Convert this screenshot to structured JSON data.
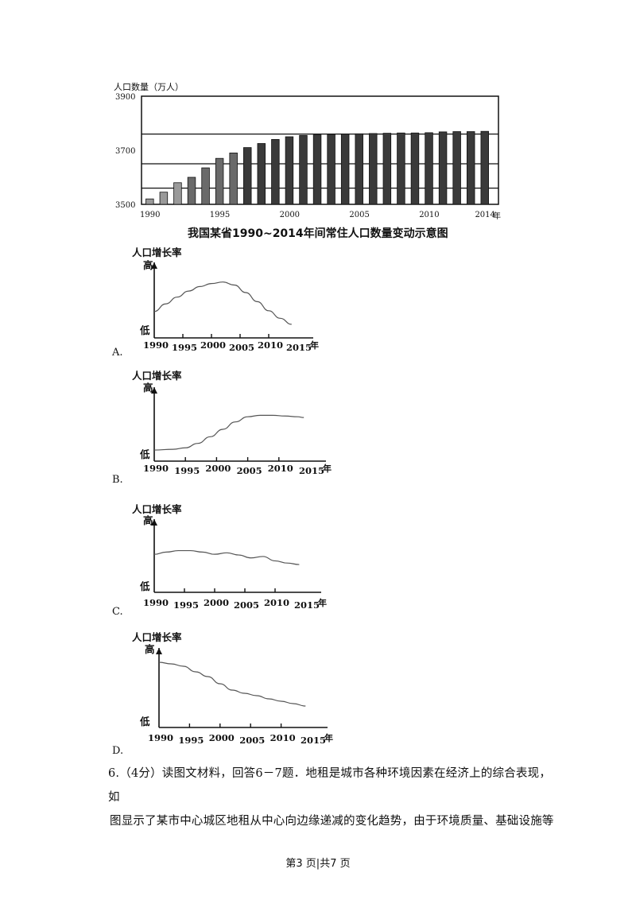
{
  "top_chart": {
    "y_axis_title": "人口数量（万人）",
    "title": "我国某省1990~2014年间常住人口数量变动示意图",
    "x_unit": "年"
  },
  "options": [
    {
      "label": "A.",
      "y_title": "人口增长率",
      "high": "高",
      "low": "低",
      "x_unit": "年"
    },
    {
      "label": "B.",
      "y_title": "人口增长率",
      "high": "高",
      "low": "低",
      "x_unit": "年"
    },
    {
      "label": "C.",
      "y_title": "人口增长率",
      "high": "高",
      "low": "低",
      "x_unit": "年"
    },
    {
      "label": "D.",
      "y_title": "人口增长率",
      "high": "高",
      "low": "低",
      "x_unit": "年"
    }
  ],
  "question": {
    "number": "6.",
    "points": "（4分）",
    "line1": "读图文材料，回答6－7题．地租是城市各种环境因素在经济上的综合表现，如",
    "line2": "图显示了某市中心城区地租从中心向边缘递减的变化趋势，由于环境质量、基础设施等"
  },
  "footer": "第3 页|共7 页",
  "chart_data": [
    {
      "type": "bar",
      "title": "我国某省1990~2014年间常住人口数量变动示意图",
      "ylabel": "人口数量（万人）",
      "xlabel": "年",
      "ylim": [
        3500,
        3900
      ],
      "y_ticks": [
        3500,
        3700,
        3900
      ],
      "x_ticks": [
        "1990",
        "1995",
        "2000",
        "2005",
        "2010",
        "2014"
      ],
      "categories": [
        "1990",
        "1991",
        "1992",
        "1993",
        "1994",
        "1995",
        "1996",
        "1997",
        "1998",
        "1999",
        "2000",
        "2001",
        "2002",
        "2003",
        "2004",
        "2005",
        "2006",
        "2007",
        "2008",
        "2009",
        "2010",
        "2011",
        "2012",
        "2013",
        "2014"
      ],
      "values": [
        3520,
        3545,
        3580,
        3600,
        3635,
        3670,
        3690,
        3710,
        3725,
        3740,
        3750,
        3755,
        3757,
        3759,
        3760,
        3761,
        3762,
        3763,
        3764,
        3764,
        3765,
        3768,
        3769,
        3769,
        3770
      ],
      "gridlines": [
        3560,
        3650,
        3760
      ]
    },
    {
      "type": "line",
      "option": "A",
      "ylabel": "人口增长率",
      "xlabel": "年",
      "x_ticks": [
        "1990",
        "1995",
        "2000",
        "2005",
        "2010",
        "2015"
      ],
      "y_range_labels": [
        "低",
        "高"
      ],
      "x": [
        1990,
        1992,
        1994,
        1996,
        1998,
        2000,
        2002,
        2004,
        2006,
        2008,
        2010,
        2012,
        2014
      ],
      "values": [
        0.35,
        0.45,
        0.54,
        0.62,
        0.68,
        0.72,
        0.74,
        0.7,
        0.6,
        0.48,
        0.36,
        0.26,
        0.18
      ]
    },
    {
      "type": "line",
      "option": "B",
      "ylabel": "人口增长率",
      "xlabel": "年",
      "x_ticks": [
        "1990",
        "1995",
        "2000",
        "2005",
        "2010",
        "2015"
      ],
      "y_range_labels": [
        "低",
        "高"
      ],
      "x": [
        1990,
        1993,
        1995,
        1997,
        1999,
        2001,
        2003,
        2005,
        2007,
        2009,
        2011,
        2013,
        2014
      ],
      "values": [
        0.15,
        0.16,
        0.18,
        0.24,
        0.33,
        0.43,
        0.53,
        0.6,
        0.62,
        0.62,
        0.61,
        0.6,
        0.59
      ]
    },
    {
      "type": "line",
      "option": "C",
      "ylabel": "人口增长率",
      "xlabel": "年",
      "x_ticks": [
        "1990",
        "1995",
        "2000",
        "2005",
        "2010",
        "2015"
      ],
      "y_range_labels": [
        "低",
        "高"
      ],
      "x": [
        1990,
        1992,
        1994,
        1996,
        1998,
        2000,
        2002,
        2004,
        2006,
        2008,
        2010,
        2012,
        2014
      ],
      "values": [
        0.52,
        0.55,
        0.57,
        0.57,
        0.55,
        0.52,
        0.54,
        0.51,
        0.47,
        0.49,
        0.43,
        0.4,
        0.38
      ]
    },
    {
      "type": "line",
      "option": "D",
      "ylabel": "人口增长率",
      "xlabel": "年",
      "x_ticks": [
        "1990",
        "1995",
        "2000",
        "2005",
        "2010",
        "2015"
      ],
      "y_range_labels": [
        "低",
        "高"
      ],
      "x": [
        1990,
        1992,
        1994,
        1996,
        1998,
        2000,
        2002,
        2004,
        2006,
        2008,
        2010,
        2012,
        2014
      ],
      "values": [
        0.82,
        0.8,
        0.77,
        0.7,
        0.64,
        0.55,
        0.47,
        0.43,
        0.4,
        0.36,
        0.33,
        0.3,
        0.27
      ]
    }
  ]
}
